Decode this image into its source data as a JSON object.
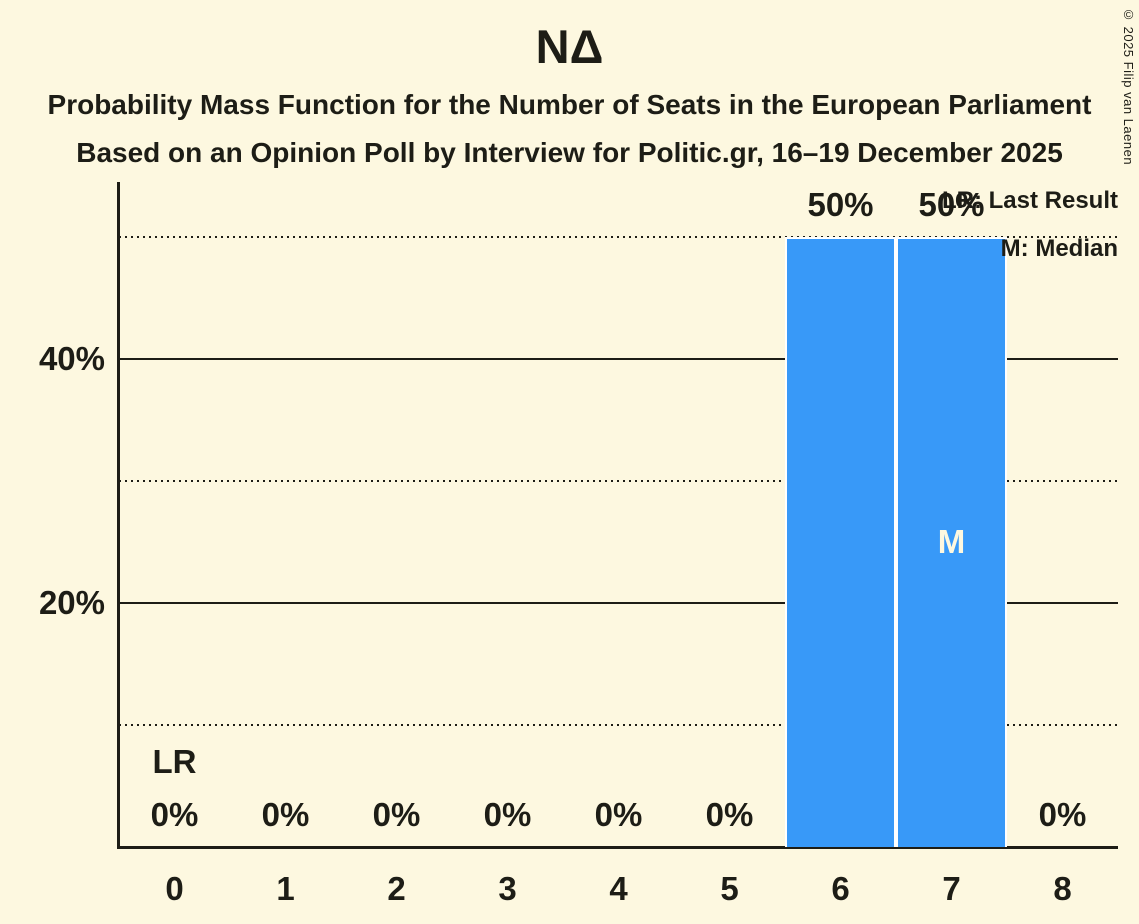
{
  "title": "ΝΔ",
  "subtitle1": "Probability Mass Function for the Number of Seats in the European Parliament",
  "subtitle2": "Based on an Opinion Poll by Interview for Politic.gr, 16–19 December 2025",
  "copyright": "© 2025 Filip van Laenen",
  "legend": {
    "last_result": "LR: Last Result",
    "median": "M: Median"
  },
  "colors": {
    "background": "#FDF8E0",
    "bar": "#3899F8",
    "bar_separator": "#FFFFFF",
    "ink": "#1D1D16",
    "median_letter": "#FDF8E0"
  },
  "y_axis": {
    "ticks": [
      {
        "label": "40%",
        "value": 40
      },
      {
        "label": "20%",
        "value": 20
      }
    ]
  },
  "chart_data": {
    "type": "bar",
    "categories": [
      "0",
      "1",
      "2",
      "3",
      "4",
      "5",
      "6",
      "7",
      "8"
    ],
    "values": [
      0,
      0,
      0,
      0,
      0,
      0,
      50,
      50,
      0
    ],
    "bar_labels": [
      "0%",
      "0%",
      "0%",
      "0%",
      "0%",
      "0%",
      "50%",
      "50%",
      "0%"
    ],
    "title": "ΝΔ",
    "xlabel": "",
    "ylabel": "",
    "ylim": [
      0,
      54.5
    ],
    "gridlines_solid": [
      20,
      40
    ],
    "gridlines_dotted": [
      10,
      30,
      50
    ],
    "legend_position": "top-right",
    "last_result_index": 0,
    "median_index": 7,
    "annotations": {
      "lr_label": "LR",
      "median_label": "M"
    }
  }
}
